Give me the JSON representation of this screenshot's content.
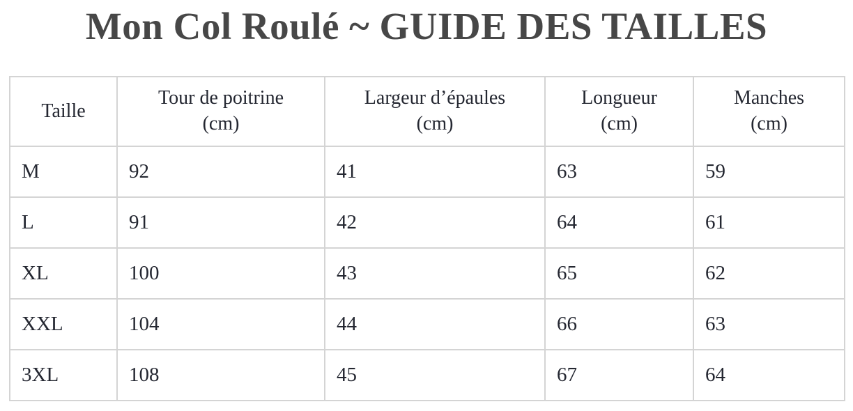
{
  "page_title": "Mon Col Roulé ~ GUIDE DES TAILLES",
  "colors": {
    "title_text": "#474747",
    "body_text": "#242731",
    "table_border": "#d4d4d4",
    "background": "#ffffff"
  },
  "chart_data": {
    "type": "table",
    "title": "Mon Col Roulé ~ GUIDE DES TAILLES",
    "columns": [
      {
        "label": "Taille",
        "unit": ""
      },
      {
        "label": "Tour de poitrine",
        "unit": "(cm)"
      },
      {
        "label": "Largeur d’épaules",
        "unit": "(cm)"
      },
      {
        "label": "Longueur",
        "unit": "(cm)"
      },
      {
        "label": "Manches",
        "unit": "(cm)"
      }
    ],
    "rows": [
      [
        "M",
        92,
        41,
        63,
        59
      ],
      [
        "L",
        91,
        42,
        64,
        61
      ],
      [
        "XL",
        100,
        43,
        65,
        62
      ],
      [
        "XXL",
        104,
        44,
        66,
        63
      ],
      [
        "3XL",
        108,
        45,
        67,
        64
      ]
    ]
  }
}
